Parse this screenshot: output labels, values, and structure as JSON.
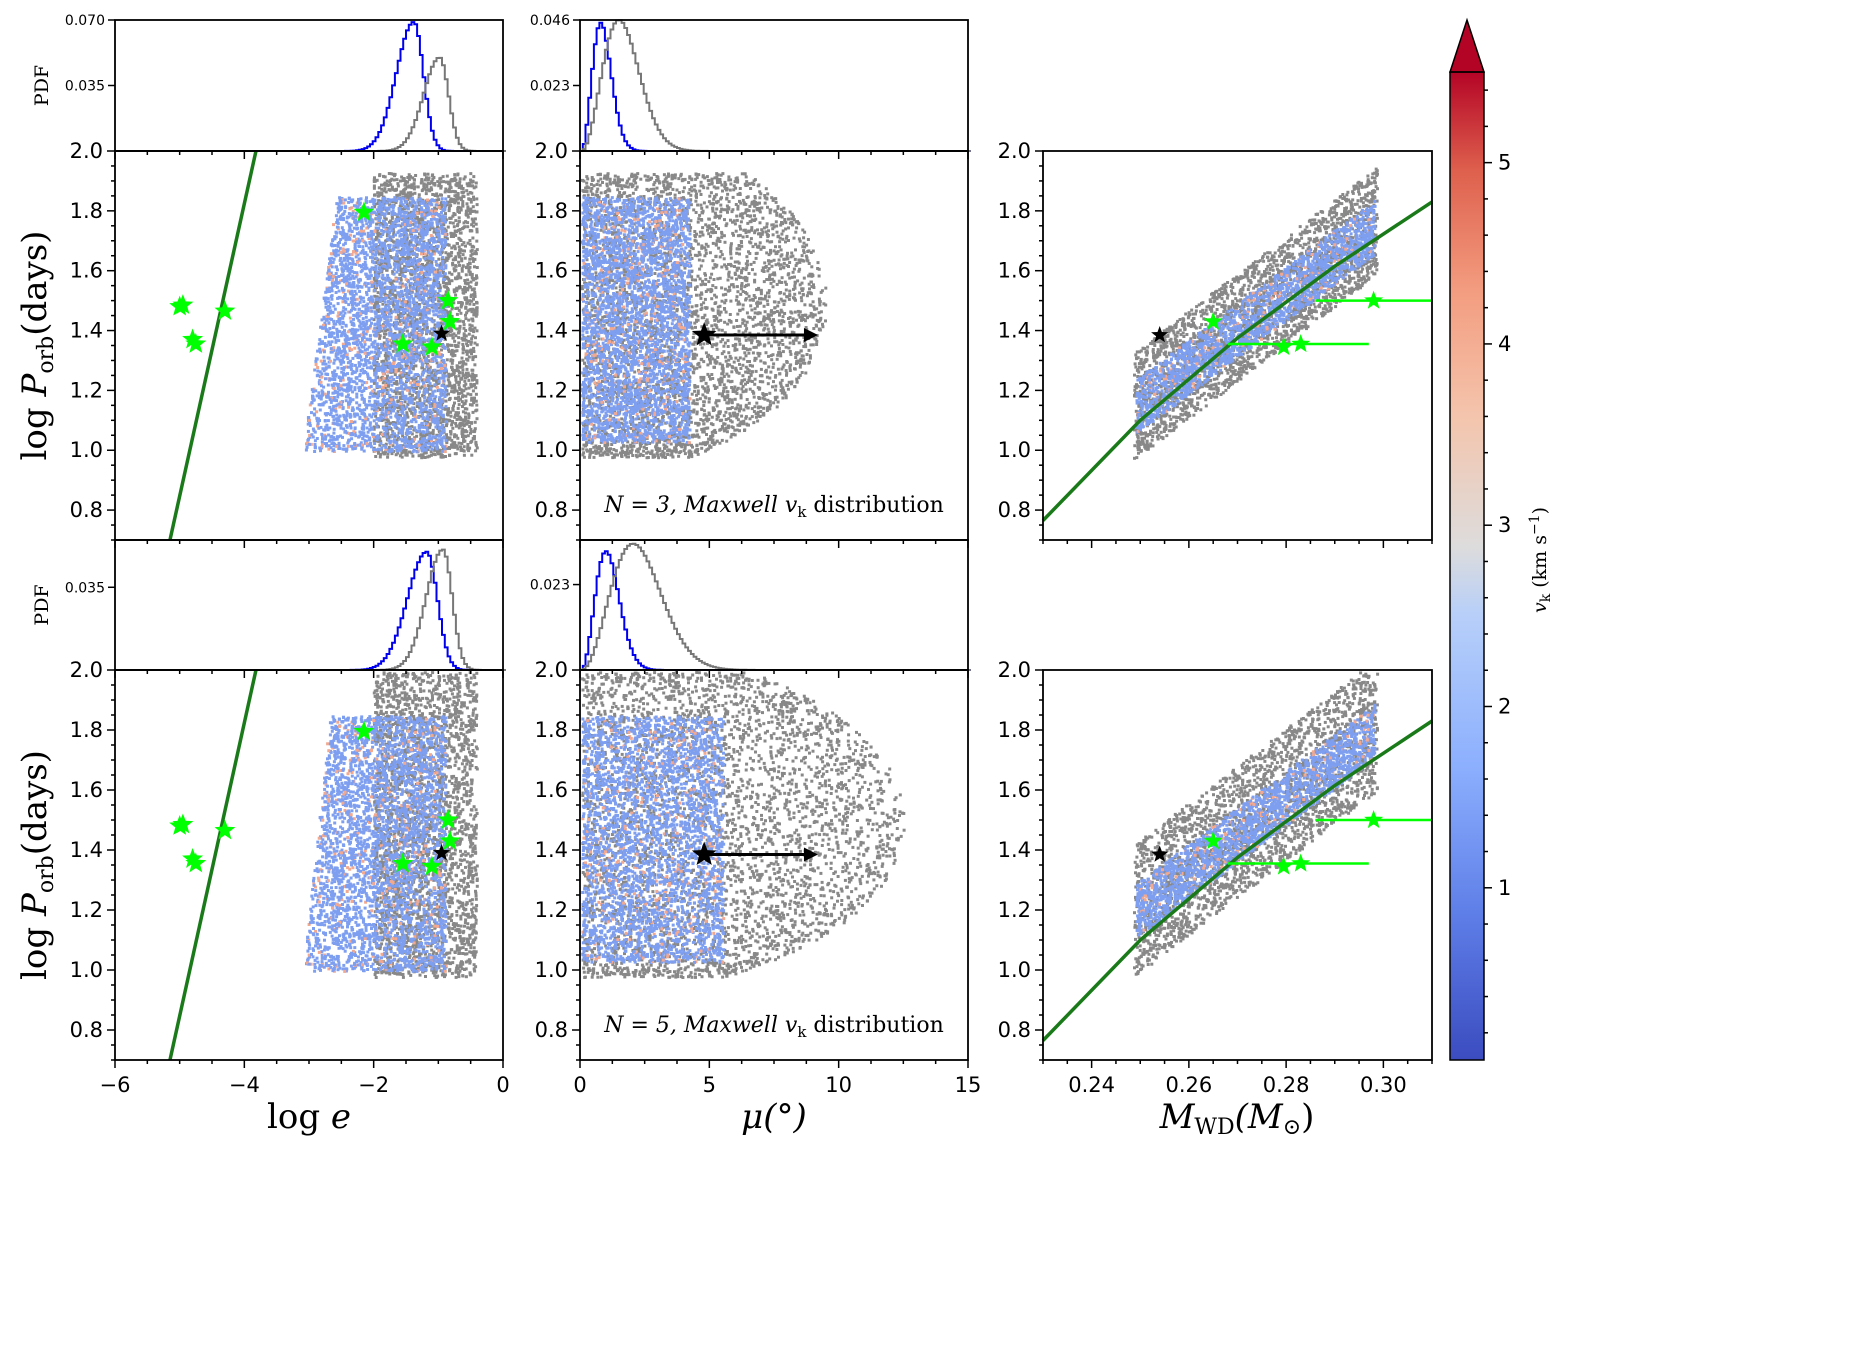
{
  "chart_data": {
    "type": "scatter",
    "colorbar": {
      "label": "v_k (km s^-1)",
      "colormap": "coolwarm",
      "ticks": [
        "1",
        "2",
        "3",
        "4",
        "5"
      ],
      "range": [
        0.05,
        5.5
      ],
      "extend": "max",
      "colors": {
        "low": "#3a4cc0",
        "mid": "#dddcdc",
        "high": "#b40426",
        "extend": "#b40426"
      }
    },
    "x_axes": [
      {
        "label_main": "log ",
        "label_var": "e",
        "ticks": [
          "−6",
          "−4",
          "−2",
          "0"
        ],
        "range": [
          -6,
          0
        ]
      },
      {
        "label_main": "μ(°)",
        "ticks": [
          "0",
          "5",
          "10",
          "15"
        ],
        "range": [
          0,
          15
        ]
      },
      {
        "label_var": "M",
        "label_sub": "WD",
        "label_tail": "(M",
        "label_tail_sub": "⊙",
        "label_close": ")",
        "ticks": [
          "0.24",
          "0.26",
          "0.28",
          "0.30"
        ],
        "range": [
          0.23,
          0.31
        ]
      }
    ],
    "y_axis": {
      "label_pre": "log ",
      "label_var": "P",
      "label_sub": "orb",
      "label_post": "(days)",
      "ticks": [
        "0.8",
        "1.0",
        "1.2",
        "1.4",
        "1.6",
        "1.8",
        "2.0"
      ],
      "range": [
        0.7,
        2.0
      ]
    },
    "pdf_panels": {
      "ylabel": "PDF",
      "row1": {
        "loge_ticks": [
          "0.035",
          "0.070"
        ],
        "loge_max": 0.07,
        "mu_ticks": [
          "0.023",
          "0.046"
        ],
        "mu_max": 0.046
      },
      "row2": {
        "loge_ticks": [
          "0.035"
        ],
        "loge_max": 0.055,
        "mu_ticks": [
          "0.023"
        ],
        "mu_max": 0.035
      }
    },
    "rows": [
      {
        "annotation": {
          "pre": "N = 3, Maxwell ",
          "var": "v",
          "sub": "k",
          "post": " distribution"
        },
        "pdf_loge": [
          {
            "series": "blue",
            "color": "#0000ee",
            "peak": -1.4,
            "width": 0.27,
            "height": 0.069
          },
          {
            "series": "grey",
            "color": "#777777",
            "peak": -1.0,
            "width": 0.25,
            "height": 0.05
          }
        ],
        "pdf_mu": [
          {
            "series": "blue",
            "color": "#0000ee",
            "mode": 0.75,
            "height": 0.045
          },
          {
            "series": "grey",
            "color": "#777777",
            "mode": 1.45,
            "height": 0.046
          }
        ]
      },
      {
        "annotation": {
          "pre": "N = 5, Maxwell ",
          "var": "v",
          "sub": "k",
          "post": " distribution"
        },
        "pdf_loge": [
          {
            "series": "blue",
            "color": "#0000ee",
            "peak": -1.2,
            "width": 0.3,
            "height": 0.05
          },
          {
            "series": "grey",
            "color": "#777777",
            "peak": -0.95,
            "width": 0.26,
            "height": 0.051
          }
        ],
        "pdf_mu": [
          {
            "series": "blue",
            "color": "#0000ee",
            "mode": 0.95,
            "height": 0.032
          },
          {
            "series": "grey",
            "color": "#777777",
            "mode": 2.0,
            "height": 0.034
          }
        ]
      }
    ],
    "relation_line": {
      "color": "#1a7a1a",
      "loge_vs_logP": [
        [
          -5.15,
          0.7
        ],
        [
          -3.82,
          2.0
        ]
      ],
      "mwd_vs_logP": [
        [
          0.23,
          0.765
        ],
        [
          0.25,
          1.1
        ],
        [
          0.27,
          1.375
        ],
        [
          0.29,
          1.615
        ],
        [
          0.31,
          1.83
        ]
      ]
    },
    "observed_green": {
      "color": "#00ff00",
      "loge_logP": [
        [
          -5.0,
          1.48
        ],
        [
          -4.95,
          1.485
        ],
        [
          -4.8,
          1.37
        ],
        [
          -4.75,
          1.355
        ],
        [
          -4.3,
          1.465
        ],
        [
          -2.15,
          1.795
        ],
        [
          -1.55,
          1.355
        ],
        [
          -1.1,
          1.345
        ],
        [
          -0.85,
          1.5
        ],
        [
          -0.82,
          1.43
        ]
      ],
      "mwd_logP": [
        [
          0.265,
          1.43
        ],
        [
          0.2795,
          1.345
        ],
        [
          0.283,
          1.355
        ],
        [
          0.298,
          1.5
        ]
      ],
      "mwd_errorbars": [
        {
          "y": 1.5,
          "x_from": 0.286,
          "x_to": 0.31
        },
        {
          "y": 1.355,
          "x_from": 0.268,
          "x_to": 0.297
        }
      ]
    },
    "observed_black": {
      "color": "#000000",
      "loge_logP": [
        -0.95,
        1.39
      ],
      "mu_logP": [
        4.8,
        1.385
      ],
      "mu_arrow_to": 9.2,
      "mwd_logP": [
        0.254,
        1.385
      ]
    },
    "scatter_grey_color": "#888888",
    "scatter_blue_color": "#7e9ff0"
  }
}
